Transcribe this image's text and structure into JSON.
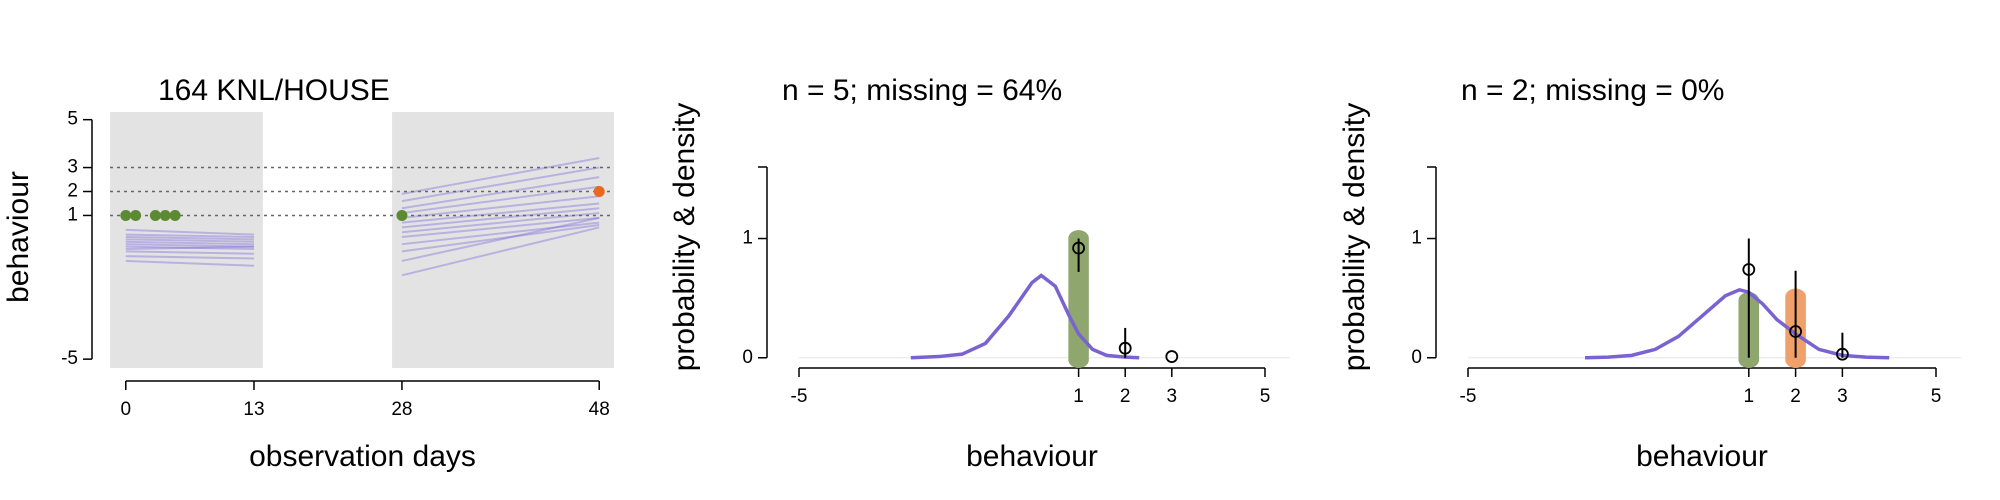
{
  "chart_data": [
    {
      "type": "spaghetti",
      "title": "164 KNL/HOUSE",
      "x_label": "observation days",
      "y_label": "behaviour",
      "xlim": [
        -1.6,
        49.5
      ],
      "ylim": [
        -5.37,
        5.32
      ],
      "xticks": [
        0,
        13,
        28,
        48
      ],
      "yticks": [
        -5,
        1,
        2,
        3,
        5
      ],
      "hlines": [
        1,
        2,
        3
      ],
      "shaded": [
        [
          -1.6,
          13.9
        ],
        [
          27,
          49.5
        ]
      ],
      "segments": [
        {
          "x": [
            0,
            13
          ],
          "color": "#7b68d9",
          "lines": [
            [
              0.4,
              0.2
            ],
            [
              0.2,
              0.1
            ],
            [
              0.1,
              0.0
            ],
            [
              0.0,
              -0.1
            ],
            [
              -0.1,
              -0.2
            ],
            [
              -0.2,
              -0.3
            ],
            [
              -0.4,
              -0.3
            ],
            [
              -0.3,
              -0.4
            ],
            [
              -0.5,
              -0.6
            ],
            [
              -0.7,
              -0.8
            ],
            [
              -0.9,
              -1.1
            ]
          ]
        },
        {
          "x": [
            28,
            48
          ],
          "color": "#7b68d9",
          "lines": [
            [
              1.9,
              3.4
            ],
            [
              1.6,
              3.0
            ],
            [
              1.3,
              2.6
            ],
            [
              1.1,
              2.2
            ],
            [
              0.9,
              1.8
            ],
            [
              0.7,
              1.5
            ],
            [
              0.5,
              1.3
            ],
            [
              0.3,
              1.1
            ],
            [
              0.1,
              0.9
            ],
            [
              -0.2,
              0.7
            ],
            [
              -0.5,
              0.6
            ],
            [
              -0.9,
              0.9
            ],
            [
              -1.5,
              0.5
            ]
          ]
        }
      ],
      "points": [
        {
          "color": "#5b8a32",
          "x": [
            0,
            1,
            3,
            4,
            5,
            28
          ],
          "values": [
            1,
            1,
            1,
            1,
            1,
            1
          ]
        },
        {
          "color": "#e8681e",
          "x": [
            48
          ],
          "values": [
            2
          ]
        }
      ]
    },
    {
      "type": "density",
      "title": "n = 5; missing = 64%",
      "x_label": "behaviour",
      "y_label": "probability & density",
      "xlim": [
        -5,
        5
      ],
      "ylim": [
        -0.086,
        1.6
      ],
      "xticks": [
        -5,
        1,
        2,
        3,
        5
      ],
      "yticks": [
        0,
        1
      ],
      "zero_line": true,
      "density": {
        "color": "#7a63d1",
        "x": [
          -2.6,
          -2,
          -1.5,
          -1,
          -0.5,
          0,
          0.2,
          0.5,
          0.8,
          1,
          1.3,
          1.6,
          2,
          2.3
        ],
        "values": [
          0,
          0.01,
          0.03,
          0.12,
          0.35,
          0.63,
          0.69,
          0.6,
          0.35,
          0.2,
          0.07,
          0.02,
          0.005,
          0
        ]
      },
      "highlights": [
        {
          "x": 1,
          "top": 1.07,
          "color": "#8fa66f"
        }
      ],
      "estimates": {
        "x": [
          1,
          2,
          3
        ],
        "values": [
          0.92,
          0.08,
          0.01
        ],
        "lower": [
          0.72,
          0,
          0.01
        ],
        "upper": [
          1.0,
          0.25,
          0.01
        ]
      }
    },
    {
      "type": "density",
      "title": "n = 2; missing = 0%",
      "x_label": "behaviour",
      "y_label": "probability & density",
      "xlim": [
        -5,
        5
      ],
      "ylim": [
        -0.086,
        1.6
      ],
      "xticks": [
        -5,
        1,
        2,
        3,
        5
      ],
      "yticks": [
        0,
        1
      ],
      "zero_line": true,
      "density": {
        "color": "#7a63d1",
        "x": [
          -2.5,
          -2,
          -1.5,
          -1,
          -0.5,
          0,
          0.5,
          0.8,
          1,
          1.3,
          1.6,
          2,
          2.5,
          3,
          3.5,
          4
        ],
        "values": [
          0,
          0.005,
          0.02,
          0.07,
          0.18,
          0.35,
          0.52,
          0.57,
          0.55,
          0.45,
          0.32,
          0.2,
          0.07,
          0.02,
          0.005,
          0
        ]
      },
      "highlights": [
        {
          "x": 1,
          "top": 0.55,
          "color": "#8fa66f"
        },
        {
          "x": 2,
          "top": 0.58,
          "color": "#f0a06a"
        }
      ],
      "estimates": {
        "x": [
          1,
          2,
          3
        ],
        "values": [
          0.74,
          0.22,
          0.03
        ],
        "lower": [
          0,
          0,
          0
        ],
        "upper": [
          1.0,
          0.73,
          0.21
        ]
      }
    }
  ]
}
